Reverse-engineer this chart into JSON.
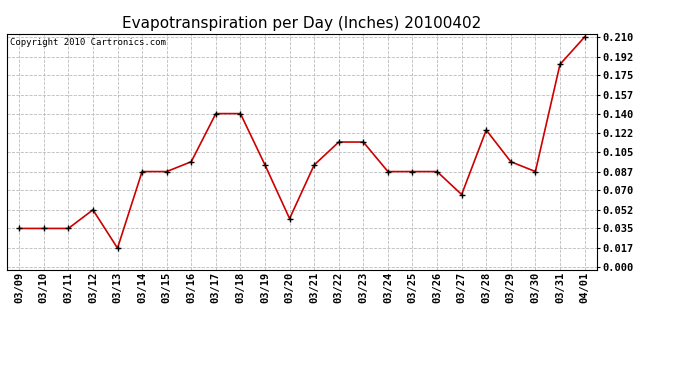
{
  "title": "Evapotranspiration per Day (Inches) 20100402",
  "copyright_text": "Copyright 2010 Cartronics.com",
  "x_labels": [
    "03/09",
    "03/10",
    "03/11",
    "03/12",
    "03/13",
    "03/14",
    "03/15",
    "03/16",
    "03/17",
    "03/18",
    "03/19",
    "03/20",
    "03/21",
    "03/22",
    "03/23",
    "03/24",
    "03/25",
    "03/26",
    "03/27",
    "03/28",
    "03/29",
    "03/30",
    "03/31",
    "04/01"
  ],
  "y_values": [
    0.035,
    0.035,
    0.035,
    0.052,
    0.017,
    0.087,
    0.087,
    0.096,
    0.14,
    0.14,
    0.093,
    0.044,
    0.093,
    0.114,
    0.114,
    0.087,
    0.087,
    0.087,
    0.066,
    0.125,
    0.096,
    0.087,
    0.185,
    0.21
  ],
  "y_ticks": [
    0.0,
    0.017,
    0.035,
    0.052,
    0.07,
    0.087,
    0.105,
    0.122,
    0.14,
    0.157,
    0.175,
    0.192,
    0.21
  ],
  "line_color": "#cc0000",
  "marker": "+",
  "marker_color": "#000000",
  "background_color": "#ffffff",
  "grid_color": "#bbbbbb",
  "title_fontsize": 11,
  "tick_fontsize": 7.5,
  "copyright_fontsize": 6.5,
  "ylim_min": 0.0,
  "ylim_max": 0.21
}
